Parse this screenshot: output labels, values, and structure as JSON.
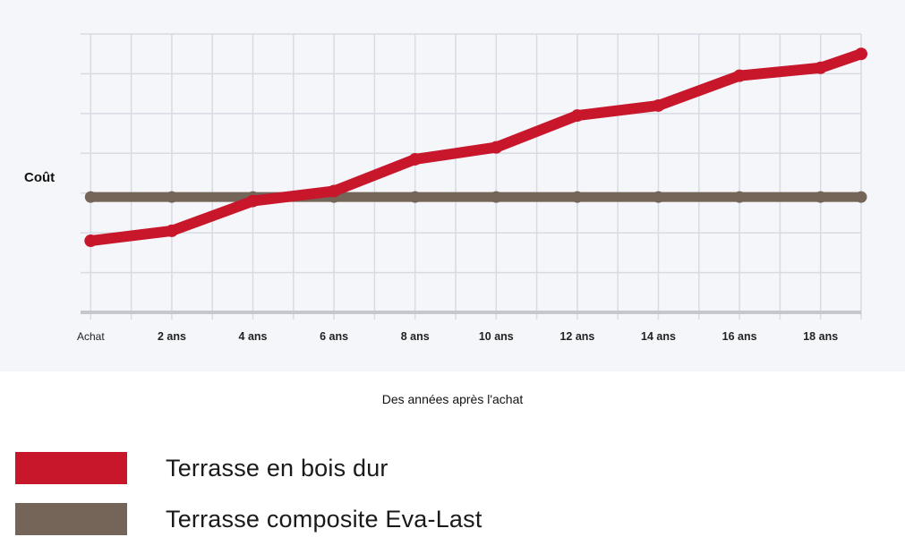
{
  "chart_data": {
    "type": "line",
    "categories": [
      "Achat",
      "2 ans",
      "4 ans",
      "6 ans",
      "8 ans",
      "10 ans",
      "12 ans",
      "14 ans",
      "16 ans",
      "18 ans"
    ],
    "x_extra_point": 19,
    "series": [
      {
        "name": "Terrasse en bois dur",
        "color": "#c8162b",
        "x": [
          0,
          2,
          4,
          6,
          8,
          10,
          12,
          14,
          16,
          18,
          19
        ],
        "values": [
          1.8,
          2.05,
          2.8,
          3.05,
          3.85,
          4.15,
          4.95,
          5.2,
          5.95,
          6.15,
          6.5
        ]
      },
      {
        "name": "Terrasse composite Eva-Last",
        "color": "#756458",
        "x": [
          0,
          2,
          4,
          6,
          8,
          10,
          12,
          14,
          16,
          18,
          19
        ],
        "values": [
          2.9,
          2.9,
          2.9,
          2.9,
          2.9,
          2.9,
          2.9,
          2.9,
          2.9,
          2.9,
          2.9
        ]
      }
    ],
    "xlabel": "Des années après l'achat",
    "ylabel": "Coût",
    "xlim": [
      -0.25,
      19
    ],
    "ylim": [
      0,
      7
    ],
    "grid": true,
    "y_ticks_labeled": false,
    "legend_position": "bottom-left"
  }
}
